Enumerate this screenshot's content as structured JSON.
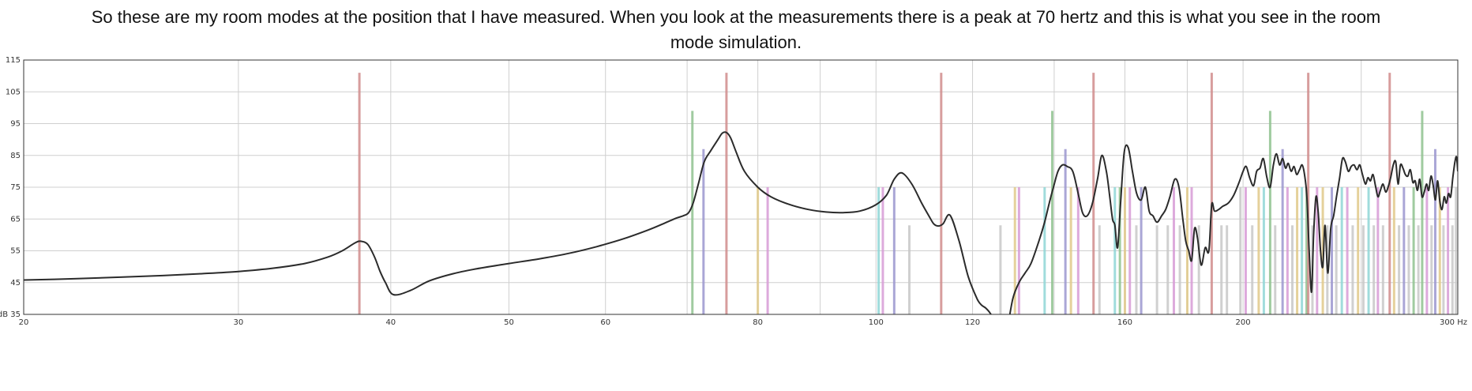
{
  "caption": {
    "line1": "So these are my room modes at the position that I have measured. When you look at the measurements there is a peak at 70 hertz and this is what you see in the room",
    "line2": "mode simulation."
  },
  "chart_data": {
    "type": "line",
    "title": "",
    "xscale": "log",
    "xlim": [
      20,
      300
    ],
    "ylim": [
      35,
      115
    ],
    "grid": true,
    "legend": "none",
    "x_ticks": [
      {
        "v": 20,
        "label": "20"
      },
      {
        "v": 30,
        "label": "30"
      },
      {
        "v": 40,
        "label": "40"
      },
      {
        "v": 50,
        "label": "50"
      },
      {
        "v": 60,
        "label": "60"
      },
      {
        "v": 80,
        "label": "80"
      },
      {
        "v": 100,
        "label": "100"
      },
      {
        "v": 120,
        "label": "120"
      },
      {
        "v": 160,
        "label": "160"
      },
      {
        "v": 200,
        "label": "200"
      },
      {
        "v": 300,
        "label": "300 Hz"
      }
    ],
    "x_minor_grid": [
      70,
      90,
      140,
      180,
      250
    ],
    "y_ticks": [
      {
        "v": 35,
        "label": "dB 35"
      },
      {
        "v": 45,
        "label": "45"
      },
      {
        "v": 55,
        "label": "55"
      },
      {
        "v": 65,
        "label": "65"
      },
      {
        "v": 75,
        "label": "75"
      },
      {
        "v": 85,
        "label": "85"
      },
      {
        "v": 95,
        "label": "95"
      },
      {
        "v": 105,
        "label": "105"
      },
      {
        "v": 115,
        "label": "115"
      }
    ],
    "colors": {
      "axial": "#d08c8c",
      "tangential": "#8fc28f",
      "oblique": "#9b97cf",
      "yellow": "#e0c98a",
      "pink": "#d79bd6",
      "cyan": "#8fd6d6",
      "grey": "#c8c8c8",
      "curve": "#2b2b2b",
      "grid": "#cfcfcf"
    },
    "modes": [
      {
        "f": 37.7,
        "level": 111,
        "color": "axial"
      },
      {
        "f": 70.7,
        "level": 99,
        "color": "tangential"
      },
      {
        "f": 72.2,
        "level": 87,
        "color": "oblique"
      },
      {
        "f": 75.4,
        "level": 111,
        "color": "axial"
      },
      {
        "f": 80.0,
        "level": 75,
        "color": "yellow"
      },
      {
        "f": 81.5,
        "level": 75,
        "color": "pink"
      },
      {
        "f": 100.5,
        "level": 75,
        "color": "cyan"
      },
      {
        "f": 101.3,
        "level": 75,
        "color": "pink"
      },
      {
        "f": 103.5,
        "level": 75,
        "color": "oblique"
      },
      {
        "f": 106.5,
        "level": 63,
        "color": "grey"
      },
      {
        "f": 113.1,
        "level": 111,
        "color": "axial"
      },
      {
        "f": 126.5,
        "level": 63,
        "color": "grey"
      },
      {
        "f": 130.0,
        "level": 75,
        "color": "yellow"
      },
      {
        "f": 131.0,
        "level": 75,
        "color": "pink"
      },
      {
        "f": 137.5,
        "level": 75,
        "color": "cyan"
      },
      {
        "f": 139.5,
        "level": 99,
        "color": "tangential"
      },
      {
        "f": 143.0,
        "level": 87,
        "color": "oblique"
      },
      {
        "f": 144.5,
        "level": 75,
        "color": "yellow"
      },
      {
        "f": 146.5,
        "level": 75,
        "color": "pink"
      },
      {
        "f": 150.8,
        "level": 111,
        "color": "axial"
      },
      {
        "f": 152.5,
        "level": 63,
        "color": "grey"
      },
      {
        "f": 157.0,
        "level": 75,
        "color": "cyan"
      },
      {
        "f": 158.5,
        "level": 75,
        "color": "tangential"
      },
      {
        "f": 160.0,
        "level": 75,
        "color": "yellow"
      },
      {
        "f": 161.5,
        "level": 75,
        "color": "pink"
      },
      {
        "f": 163.5,
        "level": 63,
        "color": "grey"
      },
      {
        "f": 165.0,
        "level": 75,
        "color": "oblique"
      },
      {
        "f": 170.0,
        "level": 63,
        "color": "grey"
      },
      {
        "f": 173.5,
        "level": 63,
        "color": "grey"
      },
      {
        "f": 175.5,
        "level": 75,
        "color": "pink"
      },
      {
        "f": 177.5,
        "level": 63,
        "color": "grey"
      },
      {
        "f": 180.0,
        "level": 75,
        "color": "yellow"
      },
      {
        "f": 181.5,
        "level": 75,
        "color": "pink"
      },
      {
        "f": 184.0,
        "level": 63,
        "color": "grey"
      },
      {
        "f": 188.5,
        "level": 111,
        "color": "axial"
      },
      {
        "f": 192.0,
        "level": 63,
        "color": "grey"
      },
      {
        "f": 194.0,
        "level": 63,
        "color": "grey"
      },
      {
        "f": 199.0,
        "level": 75,
        "color": "grey"
      },
      {
        "f": 201.0,
        "level": 75,
        "color": "pink"
      },
      {
        "f": 203.5,
        "level": 63,
        "color": "grey"
      },
      {
        "f": 206.0,
        "level": 75,
        "color": "yellow"
      },
      {
        "f": 208.0,
        "level": 75,
        "color": "cyan"
      },
      {
        "f": 210.5,
        "level": 99,
        "color": "tangential"
      },
      {
        "f": 212.5,
        "level": 63,
        "color": "grey"
      },
      {
        "f": 215.5,
        "level": 87,
        "color": "oblique"
      },
      {
        "f": 217.5,
        "level": 75,
        "color": "pink"
      },
      {
        "f": 219.5,
        "level": 63,
        "color": "grey"
      },
      {
        "f": 221.5,
        "level": 75,
        "color": "yellow"
      },
      {
        "f": 223.5,
        "level": 75,
        "color": "cyan"
      },
      {
        "f": 225.5,
        "level": 75,
        "color": "tangential"
      },
      {
        "f": 226.2,
        "level": 111,
        "color": "axial"
      },
      {
        "f": 228.0,
        "level": 63,
        "color": "grey"
      },
      {
        "f": 230.0,
        "level": 75,
        "color": "pink"
      },
      {
        "f": 232.5,
        "level": 75,
        "color": "yellow"
      },
      {
        "f": 234.5,
        "level": 63,
        "color": "grey"
      },
      {
        "f": 236.5,
        "level": 75,
        "color": "oblique"
      },
      {
        "f": 238.5,
        "level": 63,
        "color": "grey"
      },
      {
        "f": 241.0,
        "level": 75,
        "color": "cyan"
      },
      {
        "f": 243.5,
        "level": 75,
        "color": "pink"
      },
      {
        "f": 246.0,
        "level": 63,
        "color": "grey"
      },
      {
        "f": 248.5,
        "level": 75,
        "color": "yellow"
      },
      {
        "f": 251.0,
        "level": 63,
        "color": "grey"
      },
      {
        "f": 253.5,
        "level": 75,
        "color": "cyan"
      },
      {
        "f": 256.0,
        "level": 63,
        "color": "grey"
      },
      {
        "f": 258.0,
        "level": 75,
        "color": "pink"
      },
      {
        "f": 260.5,
        "level": 63,
        "color": "grey"
      },
      {
        "f": 263.8,
        "level": 111,
        "color": "axial"
      },
      {
        "f": 266.0,
        "level": 75,
        "color": "yellow"
      },
      {
        "f": 268.5,
        "level": 63,
        "color": "grey"
      },
      {
        "f": 271.0,
        "level": 75,
        "color": "oblique"
      },
      {
        "f": 273.5,
        "level": 63,
        "color": "grey"
      },
      {
        "f": 276.0,
        "level": 75,
        "color": "tangential"
      },
      {
        "f": 278.5,
        "level": 63,
        "color": "grey"
      },
      {
        "f": 280.5,
        "level": 99,
        "color": "tangential"
      },
      {
        "f": 283.0,
        "level": 75,
        "color": "pink"
      },
      {
        "f": 285.5,
        "level": 63,
        "color": "grey"
      },
      {
        "f": 287.5,
        "level": 87,
        "color": "oblique"
      },
      {
        "f": 290.0,
        "level": 75,
        "color": "yellow"
      },
      {
        "f": 292.0,
        "level": 63,
        "color": "grey"
      },
      {
        "f": 294.5,
        "level": 75,
        "color": "pink"
      },
      {
        "f": 297.0,
        "level": 63,
        "color": "grey"
      },
      {
        "f": 299.0,
        "level": 75,
        "color": "grey"
      }
    ],
    "series": [
      {
        "x": [
          20,
          22,
          24,
          26,
          28,
          30,
          32,
          34,
          35.5,
          36.5,
          37.4,
          37.8,
          38.3,
          38.8,
          39.2,
          39.6,
          40.2,
          41.5,
          43,
          45,
          47,
          50,
          53,
          56,
          59,
          62,
          65,
          67,
          68.5,
          69.5,
          70.2,
          70.8,
          71.5,
          72.3,
          73.2,
          74.2,
          74.8,
          75.4,
          76.0,
          76.8,
          78,
          80,
          82,
          85,
          88,
          91,
          94,
          97,
          100,
          102,
          103.5,
          105,
          107,
          109,
          110.5,
          111.5,
          112.5,
          113.5,
          115,
          117,
          119,
          121,
          122,
          123,
          124,
          125,
          126.5,
          128,
          129.5,
          131,
          132.5,
          134,
          136,
          137.5,
          138.7,
          139.8,
          141,
          142.2,
          143.5,
          145,
          146.5,
          147.7,
          149,
          150.5,
          152,
          153.2,
          154.5,
          155.5,
          156.3,
          157,
          157.8,
          158.7,
          159.8,
          161,
          162.3,
          163.6,
          165,
          166.3,
          167.5,
          168.7,
          170,
          171.5,
          172.8,
          174.2,
          175.8,
          177.2,
          178.5,
          179.5,
          180.5,
          181.5,
          182.5,
          183.5,
          184.8,
          186.2,
          187.5,
          188.5,
          189.5,
          191,
          192.5,
          194.5,
          196.5,
          198.5,
          200,
          201.2,
          202.5,
          204,
          205.2,
          206.5,
          207.8,
          209.2,
          210.5,
          211.8,
          213,
          214.3,
          215.5,
          216.7,
          217.8,
          219,
          220.2,
          221.3,
          222.5,
          223.6,
          224.6,
          225.6,
          226.6,
          227.6,
          228.5,
          229.5,
          230.5,
          231.5,
          232.5,
          233.5,
          234.7,
          236,
          237.3,
          238.6,
          240,
          241.3,
          242.6,
          244,
          245.3,
          246.6,
          248,
          249.3,
          250.6,
          252,
          253.2,
          254.4,
          255.6,
          256.8,
          258,
          259.2,
          260.5,
          261.8,
          263,
          264.3,
          265.6,
          266.8,
          268,
          269.2,
          270.5,
          271.7,
          273,
          274.3,
          275.6,
          276.8,
          278,
          279.2,
          280.4,
          281.6,
          282.8,
          284,
          285.2,
          286.4,
          287.6,
          288.8,
          290,
          291.2,
          292.4,
          293.6,
          294.8,
          296,
          297.2,
          298.4,
          299.3,
          300
        ],
        "y": [
          45.8,
          46.2,
          46.7,
          47.2,
          47.8,
          48.5,
          49.5,
          51.0,
          53.0,
          55.0,
          57.5,
          58.0,
          57.0,
          53.0,
          48.5,
          45.0,
          41.2,
          42.5,
          45.5,
          47.8,
          49.3,
          51.0,
          52.5,
          54.2,
          56.3,
          58.7,
          61.5,
          63.6,
          65.2,
          66.0,
          67.0,
          70.0,
          76.0,
          83.0,
          86.5,
          90.0,
          92.0,
          92.2,
          90.5,
          86.0,
          80.0,
          75.0,
          72.0,
          69.5,
          68.0,
          67.2,
          67.0,
          67.5,
          69.5,
          72.5,
          77.5,
          79.5,
          76.0,
          70.0,
          66.0,
          63.5,
          62.8,
          63.5,
          66.2,
          58.0,
          47.0,
          40.0,
          38.0,
          37.0,
          35.5,
          33.0,
          27.0,
          30.0,
          40.0,
          45.0,
          48.0,
          51.0,
          58.0,
          64.0,
          70.0,
          75.0,
          80.0,
          82.0,
          81.5,
          80.0,
          73.0,
          67.0,
          66.0,
          70.0,
          78.0,
          85.0,
          80.0,
          72.0,
          65.0,
          63.0,
          56.0,
          70.0,
          86.0,
          87.5,
          80.0,
          73.0,
          71.0,
          75.0,
          67.5,
          66.0,
          64.0,
          66.0,
          68.0,
          72.0,
          77.5,
          75.0,
          65.0,
          58.0,
          55.0,
          52.0,
          62.0,
          59.0,
          50.5,
          56.0,
          55.0,
          69.5,
          67.5,
          68.0,
          69.0,
          70.0,
          72.5,
          76.5,
          80.0,
          81.5,
          78.0,
          75.5,
          80.0,
          81.0,
          84.0,
          78.0,
          75.0,
          82.0,
          85.5,
          82.0,
          84.0,
          81.0,
          82.5,
          80.0,
          81.5,
          79.0,
          80.5,
          82.0,
          79.0,
          72.0,
          55.0,
          42.0,
          60.0,
          72.0,
          67.0,
          55.0,
          50.0,
          63.0,
          48.0,
          62.0,
          66.0,
          72.0,
          78.0,
          84.0,
          83.0,
          80.0,
          81.5,
          82.0,
          80.5,
          82.0,
          79.0,
          76.0,
          78.0,
          77.0,
          79.0,
          75.5,
          72.0,
          74.0,
          76.0,
          73.5,
          75.0,
          78.0,
          82.0,
          83.0,
          76.0,
          82.0,
          81.0,
          79.0,
          78.5,
          80.5,
          76.5,
          77.0,
          74.0,
          77.5,
          72.0,
          73.5,
          76.0,
          74.0,
          78.5,
          75.5,
          71.0,
          77.0,
          70.5,
          68.0,
          72.0,
          70.0,
          73.0,
          72.0,
          78.0,
          83.0,
          84.5,
          80.0
        ]
      }
    ]
  }
}
